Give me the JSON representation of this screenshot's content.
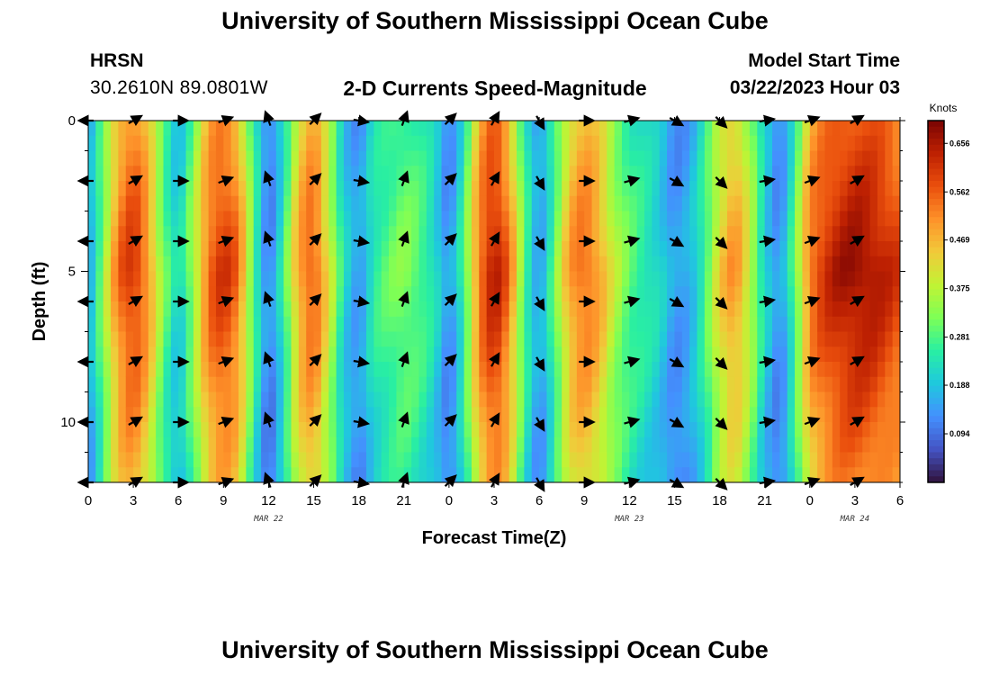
{
  "header": {
    "title": "University of Southern Mississippi Ocean Cube",
    "station": "HRSN",
    "coordinates": "30.2610N  89.0801W",
    "product": "2-D Currents Speed-Magnitude",
    "model_start_label": "Model Start Time",
    "model_start_value": "03/22/2023 Hour 03",
    "footer_title": "University of Southern Mississippi Ocean Cube"
  },
  "chart_data": {
    "type": "heatmap",
    "title": "2-D Currents Speed-Magnitude",
    "xlabel": "Forecast Time(Z)",
    "ylabel": "Depth (ft)",
    "x_range_hours": [
      0,
      54
    ],
    "y_range_ft": [
      0,
      12
    ],
    "y_inverted": true,
    "x_ticks": [
      "0",
      "3",
      "6",
      "9",
      "12",
      "15",
      "18",
      "21",
      "0",
      "3",
      "6",
      "9",
      "12",
      "15",
      "18",
      "21",
      "0",
      "3",
      "6"
    ],
    "y_ticks": [
      "0",
      "5",
      "10"
    ],
    "date_labels": [
      {
        "text": "MAR 22",
        "hour": 12
      },
      {
        "text": "MAR 23",
        "hour": 36
      },
      {
        "text": "MAR 24",
        "hour": 51
      }
    ],
    "colorbar": {
      "label": "Knots",
      "min": 0,
      "max": 0.7,
      "ticks": [
        "0.094",
        "0.188",
        "0.281",
        "0.375",
        "0.469",
        "0.562",
        "0.656"
      ],
      "colors": [
        "#30123b",
        "#4454c4",
        "#4490fe",
        "#1fc8de",
        "#29efa2",
        "#7dff56",
        "#c1f334",
        "#f1ca3a",
        "#fe922a",
        "#ea4f0d",
        "#be2102",
        "#7a0403"
      ]
    },
    "speed_profile_knots": [
      {
        "hour": 0,
        "speed": 0.15
      },
      {
        "hour": 1,
        "speed": 0.34
      },
      {
        "hour": 2,
        "speed": 0.55
      },
      {
        "hour": 3,
        "speed": 0.62
      },
      {
        "hour": 4,
        "speed": 0.52
      },
      {
        "hour": 5,
        "speed": 0.32
      },
      {
        "hour": 6,
        "speed": 0.2
      },
      {
        "hour": 7,
        "speed": 0.36
      },
      {
        "hour": 8,
        "speed": 0.56
      },
      {
        "hour": 9,
        "speed": 0.62
      },
      {
        "hour": 10,
        "speed": 0.55
      },
      {
        "hour": 11,
        "speed": 0.3
      },
      {
        "hour": 12,
        "speed": 0.1
      },
      {
        "hour": 13,
        "speed": 0.26
      },
      {
        "hour": 14,
        "speed": 0.5
      },
      {
        "hour": 15,
        "speed": 0.58
      },
      {
        "hour": 16,
        "speed": 0.42
      },
      {
        "hour": 17,
        "speed": 0.22
      },
      {
        "hour": 18,
        "speed": 0.14
      },
      {
        "hour": 19,
        "speed": 0.26
      },
      {
        "hour": 20,
        "speed": 0.3
      },
      {
        "hour": 21,
        "speed": 0.33
      },
      {
        "hour": 22,
        "speed": 0.3
      },
      {
        "hour": 23,
        "speed": 0.24
      },
      {
        "hour": 24,
        "speed": 0.12
      },
      {
        "hour": 25,
        "speed": 0.28
      },
      {
        "hour": 26,
        "speed": 0.55
      },
      {
        "hour": 27,
        "speed": 0.66
      },
      {
        "hour": 28,
        "speed": 0.55
      },
      {
        "hour": 29,
        "speed": 0.3
      },
      {
        "hour": 30,
        "speed": 0.14
      },
      {
        "hour": 31,
        "speed": 0.3
      },
      {
        "hour": 32,
        "speed": 0.5
      },
      {
        "hour": 33,
        "speed": 0.56
      },
      {
        "hour": 34,
        "speed": 0.5
      },
      {
        "hour": 35,
        "speed": 0.38
      },
      {
        "hour": 36,
        "speed": 0.3
      },
      {
        "hour": 37,
        "speed": 0.26
      },
      {
        "hour": 38,
        "speed": 0.22
      },
      {
        "hour": 39,
        "speed": 0.14
      },
      {
        "hour": 40,
        "speed": 0.17
      },
      {
        "hour": 41,
        "speed": 0.28
      },
      {
        "hour": 42,
        "speed": 0.44
      },
      {
        "hour": 43,
        "speed": 0.52
      },
      {
        "hour": 44,
        "speed": 0.4
      },
      {
        "hour": 45,
        "speed": 0.22
      },
      {
        "hour": 46,
        "speed": 0.12
      },
      {
        "hour": 47,
        "speed": 0.3
      },
      {
        "hour": 48,
        "speed": 0.55
      },
      {
        "hour": 49,
        "speed": 0.62
      },
      {
        "hour": 50,
        "speed": 0.66
      },
      {
        "hour": 51,
        "speed": 0.68
      },
      {
        "hour": 52,
        "speed": 0.67
      },
      {
        "hour": 53,
        "speed": 0.64
      },
      {
        "hour": 54,
        "speed": 0.6
      }
    ],
    "vector_hours": [
      0,
      3,
      6,
      9,
      12,
      15,
      18,
      21,
      24,
      27,
      30,
      33,
      36,
      39,
      42,
      45,
      48,
      51
    ],
    "vector_depths_ft": [
      0,
      2,
      4,
      6,
      8,
      10,
      12
    ],
    "vector_directions_deg": [
      180,
      30,
      0,
      20,
      110,
      45,
      350,
      70,
      45,
      60,
      300,
      0,
      15,
      330,
      315,
      10,
      20,
      30
    ]
  }
}
